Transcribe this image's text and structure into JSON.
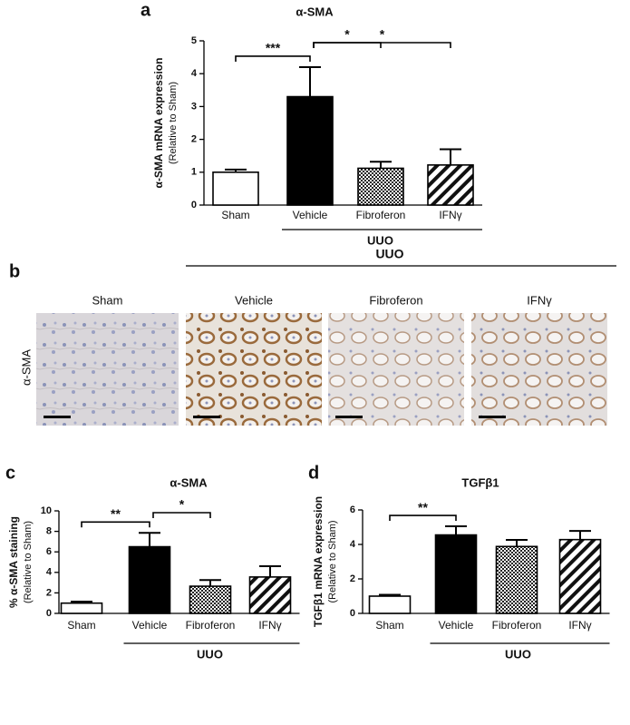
{
  "chart_data": [
    {
      "type": "bar",
      "panel": "a",
      "title": "α-SMA",
      "ylabel": "α-SMA mRNA expression",
      "ylabel_sub": "(Relative to Sham)",
      "categories": [
        "Sham",
        "Vehicle",
        "Fibroferon",
        "IFNγ"
      ],
      "values": [
        1.0,
        3.3,
        1.12,
        1.22
      ],
      "errors": [
        0.08,
        0.9,
        0.2,
        0.48
      ],
      "patterns": [
        "white",
        "black",
        "dots",
        "hatch"
      ],
      "ylim": [
        0,
        5
      ],
      "yticks": [
        0,
        1,
        2,
        3,
        4,
        5
      ],
      "group_label": "UUO",
      "annotations": [
        {
          "text": "***",
          "between": [
            "Sham",
            "Vehicle"
          ]
        },
        {
          "text": "*",
          "between": [
            "Vehicle",
            "Fibroferon"
          ]
        },
        {
          "text": "*",
          "between": [
            "Vehicle",
            "IFNγ"
          ]
        }
      ]
    },
    {
      "type": "bar",
      "panel": "c",
      "title": "α-SMA",
      "ylabel": "% α-SMA staining",
      "ylabel_sub": "(Relative to Sham)",
      "categories": [
        "Sham",
        "Vehicle",
        "Fibroferon",
        "IFNγ"
      ],
      "values": [
        1.0,
        6.5,
        2.65,
        3.55
      ],
      "errors": [
        0.15,
        1.35,
        0.6,
        1.05
      ],
      "patterns": [
        "white",
        "black",
        "dots",
        "hatch"
      ],
      "ylim": [
        0,
        10
      ],
      "yticks": [
        0,
        2,
        4,
        6,
        8,
        10
      ],
      "group_label": "UUO",
      "annotations": [
        {
          "text": "**",
          "between": [
            "Sham",
            "Vehicle"
          ]
        },
        {
          "text": "*",
          "between": [
            "Vehicle",
            "Fibroferon"
          ]
        }
      ]
    },
    {
      "type": "bar",
      "panel": "d",
      "title": "TGFβ1",
      "ylabel": "TGFβ1 mRNA expression",
      "ylabel_sub": "(Relative to Sham)",
      "categories": [
        "Sham",
        "Vehicle",
        "Fibroferon",
        "IFNγ"
      ],
      "values": [
        1.0,
        4.55,
        3.88,
        4.28
      ],
      "errors": [
        0.08,
        0.5,
        0.38,
        0.5
      ],
      "patterns": [
        "white",
        "black",
        "dots",
        "hatch"
      ],
      "ylim": [
        0,
        6
      ],
      "yticks": [
        0,
        2,
        4,
        6
      ],
      "group_label": "UUO",
      "annotations": [
        {
          "text": "**",
          "between": [
            "Sham",
            "Vehicle"
          ]
        }
      ]
    }
  ],
  "panel_b": {
    "panel": "b",
    "group_label": "UUO",
    "row_label": "α-SMA",
    "columns": [
      "Sham",
      "Vehicle",
      "Fibroferon",
      "IFNγ"
    ]
  }
}
